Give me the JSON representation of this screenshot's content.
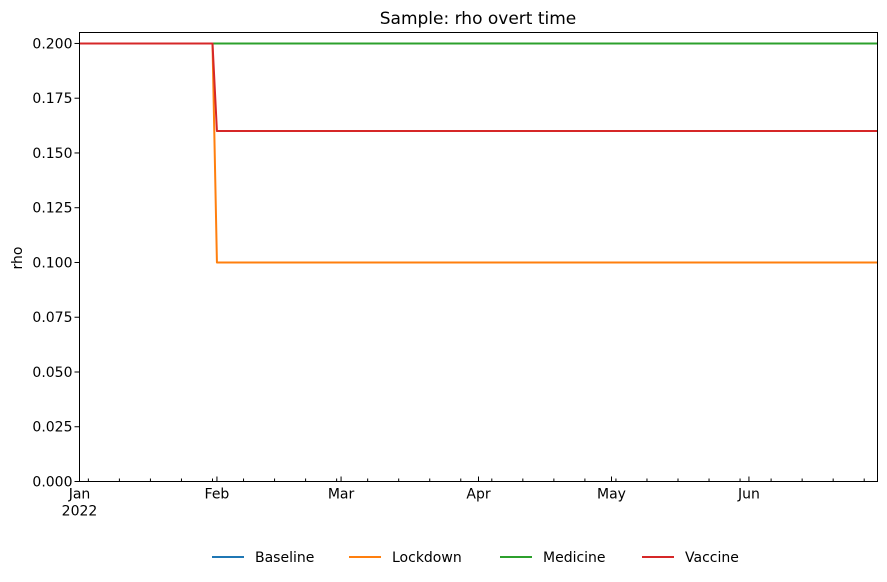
{
  "chart_data": {
    "type": "line",
    "title": "Sample: rho overt time",
    "xlabel": "",
    "ylabel": "rho",
    "x": [
      "2022-01-01",
      "2022-01-31",
      "2022-02-01",
      "2022-06-30"
    ],
    "xlim": [
      "2022-01-01",
      "2022-06-30"
    ],
    "ylim": [
      0.0,
      0.205
    ],
    "x_tick_labels": [
      {
        "date": "2022-01-01",
        "label": "Jan",
        "sublabel": "2022"
      },
      {
        "date": "2022-02-01",
        "label": "Feb",
        "sublabel": ""
      },
      {
        "date": "2022-03-01",
        "label": "Mar",
        "sublabel": ""
      },
      {
        "date": "2022-04-01",
        "label": "Apr",
        "sublabel": ""
      },
      {
        "date": "2022-05-01",
        "label": "May",
        "sublabel": ""
      },
      {
        "date": "2022-06-01",
        "label": "Jun",
        "sublabel": ""
      }
    ],
    "y_ticks": [
      0.0,
      0.025,
      0.05,
      0.075,
      0.1,
      0.125,
      0.15,
      0.175,
      0.2
    ],
    "y_tick_labels": [
      "0.000",
      "0.025",
      "0.050",
      "0.075",
      "0.100",
      "0.125",
      "0.150",
      "0.175",
      "0.200"
    ],
    "series": [
      {
        "name": "Baseline",
        "color": "#1f77b4",
        "values": [
          0.2,
          0.2,
          0.2,
          0.2
        ]
      },
      {
        "name": "Medicine",
        "color": "#2ca02c",
        "values": [
          0.2,
          0.2,
          0.2,
          0.2
        ]
      },
      {
        "name": "Lockdown",
        "color": "#ff7f0e",
        "values": [
          0.2,
          0.2,
          0.1,
          0.1
        ]
      },
      {
        "name": "Vaccine",
        "color": "#d62728",
        "values": [
          0.2,
          0.2,
          0.16,
          0.16
        ]
      }
    ],
    "legend": {
      "placement": "bottom-center",
      "order": [
        "Baseline",
        "Lockdown",
        "Medicine",
        "Vaccine"
      ]
    },
    "grid": false
  }
}
